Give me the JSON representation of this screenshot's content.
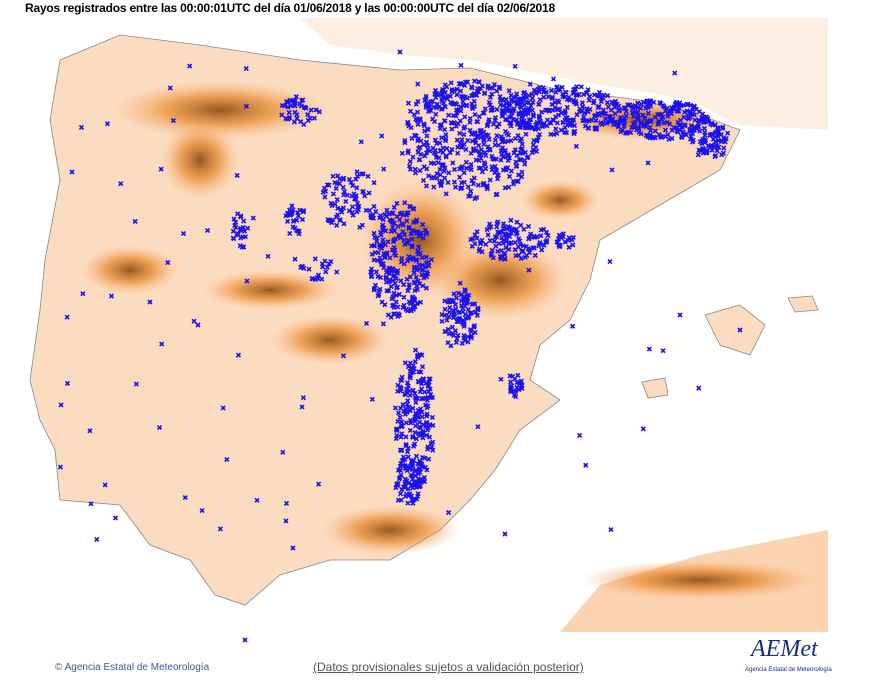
{
  "title": "Rayos registrados entre las 00:00:01UTC del día 01/06/2018 y las 00:00:00UTC del día 02/06/2018",
  "footer": {
    "copyright": "© Agencia Estatal de Meteorología",
    "disclaimer": "(Datos provisionales sujetos a validación posterior)"
  },
  "logo": {
    "wordmark": "AEMet",
    "subtitle": "Agencia Estatal de Meteorología"
  },
  "colors": {
    "strike": "#1a10f0",
    "land": "#fcdcc0",
    "relief": "#e07a1f",
    "sea": "#ffffff"
  },
  "legend": {
    "strike_symbol": "x"
  }
}
